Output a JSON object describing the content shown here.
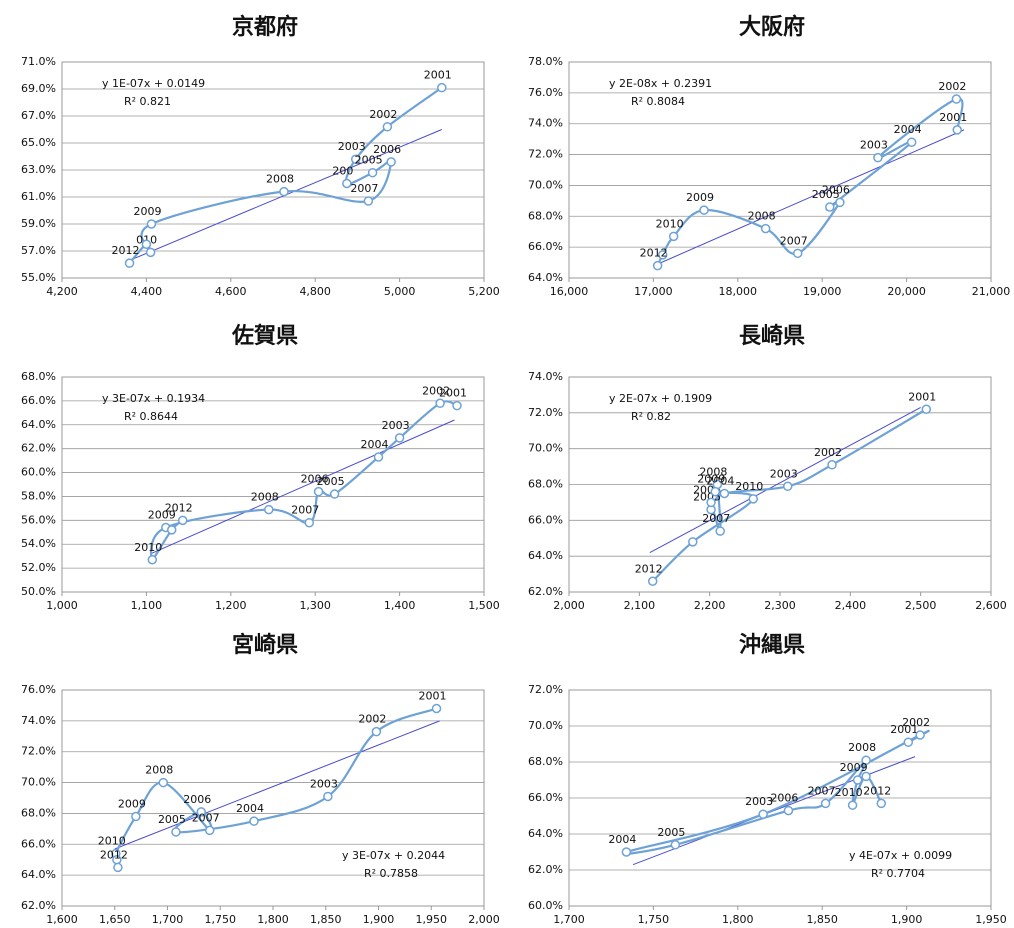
{
  "chart_data": [
    {
      "type": "scatter",
      "title": "京都府",
      "color": "#6ea2d6",
      "equation_position": "top-left",
      "equation": "y   1E-07x + 0.0149",
      "r_squared": "R²   0.821",
      "x": [
        5100,
        4971,
        4896,
        4875,
        4936,
        4980,
        4926,
        4726,
        4412,
        4410,
        4400,
        4360
      ],
      "values": [
        69.1,
        66.2,
        63.8,
        62.0,
        62.8,
        63.6,
        60.7,
        61.4,
        59.0,
        56.9,
        57.5,
        56.1
      ],
      "point_labels": [
        "2001",
        "2002",
        "2003",
        "200",
        "2005",
        "2006",
        "2007",
        "2008",
        "2009",
        "010",
        null,
        "2012"
      ],
      "trendline": {
        "color": "#4a4ad0",
        "x": [
          4360,
          5100
        ],
        "values": [
          56.3,
          66.0
        ]
      },
      "xlim": [
        4200,
        5200
      ],
      "xticks": [
        {
          "value": 4200,
          "label": "4,200"
        },
        {
          "value": 4400,
          "label": "4,400"
        },
        {
          "value": 4600,
          "label": "4,600"
        },
        {
          "value": 4800,
          "label": "4,800"
        },
        {
          "value": 5000,
          "label": "5,000"
        },
        {
          "value": 5200,
          "label": "5,200"
        }
      ],
      "ylim": [
        55,
        71
      ],
      "yticks": [
        {
          "value": 55,
          "label": "55.0%"
        },
        {
          "value": 57,
          "label": "57.0%"
        },
        {
          "value": 59,
          "label": "59.0%"
        },
        {
          "value": 61,
          "label": "61.0%"
        },
        {
          "value": 63,
          "label": "63.0%"
        },
        {
          "value": 65,
          "label": "65.0%"
        },
        {
          "value": 67,
          "label": "67.0%"
        },
        {
          "value": 69,
          "label": "69.0%"
        },
        {
          "value": 71,
          "label": "71.0%"
        }
      ],
      "grid": true
    },
    {
      "type": "scatter",
      "title": "大阪府",
      "color": "#6ea2d6",
      "equation_position": "top-left",
      "equation": "y   2E-08x + 0.2391",
      "r_squared": "R²   0.8084",
      "x": [
        20600,
        20590,
        19660,
        20060,
        19090,
        19210,
        18710,
        18330,
        17600,
        17240,
        17110,
        17050
      ],
      "values": [
        73.6,
        75.6,
        71.8,
        72.8,
        68.6,
        68.9,
        65.6,
        67.2,
        68.4,
        66.7,
        65.5,
        64.8
      ],
      "point_labels": [
        "2001",
        "2002",
        "2003",
        "2004",
        "2005",
        "2006",
        "2007",
        "2008",
        "2009",
        "2010",
        null,
        "2012"
      ],
      "trendline": {
        "color": "#4a4ad0",
        "x": [
          17050,
          20680
        ],
        "values": [
          64.9,
          73.6
        ]
      },
      "xlim": [
        16000,
        21000
      ],
      "xticks": [
        {
          "value": 16000,
          "label": "16,000"
        },
        {
          "value": 17000,
          "label": "17,000"
        },
        {
          "value": 18000,
          "label": "18,000"
        },
        {
          "value": 19000,
          "label": "19,000"
        },
        {
          "value": 20000,
          "label": "20,000"
        },
        {
          "value": 21000,
          "label": "21,000"
        }
      ],
      "ylim": [
        64,
        78
      ],
      "yticks": [
        {
          "value": 64,
          "label": "64.0%"
        },
        {
          "value": 66,
          "label": "66.0%"
        },
        {
          "value": 68,
          "label": "68.0%"
        },
        {
          "value": 70,
          "label": "70.0%"
        },
        {
          "value": 72,
          "label": "72.0%"
        },
        {
          "value": 74,
          "label": "74.0%"
        },
        {
          "value": 76,
          "label": "76.0%"
        },
        {
          "value": 78,
          "label": "78.0%"
        }
      ],
      "grid": true
    },
    {
      "type": "scatter",
      "title": "佐賀県",
      "color": "#6ea2d6",
      "equation_position": "top-left",
      "equation": "y   3E-07x + 0.1934",
      "r_squared": "R²   0.8644",
      "x": [
        1468,
        1448,
        1400,
        1375,
        1323,
        1304,
        1293,
        1245,
        1123,
        1107,
        1130,
        1143
      ],
      "values": [
        65.6,
        65.8,
        62.9,
        61.3,
        58.2,
        58.4,
        55.8,
        56.9,
        55.4,
        52.7,
        55.2,
        56.0
      ],
      "point_labels": [
        "2001",
        "2002",
        "2003",
        "2004",
        "2005",
        "2006",
        "2007",
        "2008",
        "2009",
        "2010",
        null,
        "2012"
      ],
      "trendline": {
        "color": "#4a4ad0",
        "x": [
          1105,
          1465
        ],
        "values": [
          53.2,
          64.4
        ]
      },
      "xlim": [
        1000,
        1500
      ],
      "xticks": [
        {
          "value": 1000,
          "label": "1,000"
        },
        {
          "value": 1100,
          "label": "1,100"
        },
        {
          "value": 1200,
          "label": "1,200"
        },
        {
          "value": 1300,
          "label": "1,300"
        },
        {
          "value": 1400,
          "label": "1,400"
        },
        {
          "value": 1500,
          "label": "1,500"
        }
      ],
      "ylim": [
        50,
        68
      ],
      "yticks": [
        {
          "value": 50,
          "label": "50.0%"
        },
        {
          "value": 52,
          "label": "52.0%"
        },
        {
          "value": 54,
          "label": "54.0%"
        },
        {
          "value": 56,
          "label": "56.0%"
        },
        {
          "value": 58,
          "label": "58.0%"
        },
        {
          "value": 60,
          "label": "60.0%"
        },
        {
          "value": 62,
          "label": "62.0%"
        },
        {
          "value": 64,
          "label": "64.0%"
        },
        {
          "value": 66,
          "label": "66.0%"
        },
        {
          "value": 68,
          "label": "68.0%"
        }
      ],
      "grid": true
    },
    {
      "type": "scatter",
      "title": "長崎県",
      "color": "#6ea2d6",
      "equation_position": "top-left",
      "equation": "y   2E-07x + 0.1909",
      "r_squared": "R²   0.82",
      "x": [
        2508,
        2374,
        2311,
        2221,
        2202,
        2202,
        2215,
        2211,
        2208,
        2262,
        2176,
        2119
      ],
      "values": [
        72.2,
        69.1,
        67.9,
        67.5,
        66.6,
        67.0,
        65.4,
        68.0,
        67.6,
        67.2,
        64.8,
        62.6
      ],
      "point_labels": [
        "2001",
        "2002",
        "2003",
        "2004",
        "2005",
        "2006",
        "2007",
        "2008",
        "2009",
        "2010",
        null,
        "2012"
      ],
      "trendline": {
        "color": "#4a4ad0",
        "x": [
          2115,
          2500
        ],
        "values": [
          64.2,
          72.3
        ]
      },
      "xlim": [
        2000,
        2600
      ],
      "xticks": [
        {
          "value": 2000,
          "label": "2,000"
        },
        {
          "value": 2100,
          "label": "2,100"
        },
        {
          "value": 2200,
          "label": "2,200"
        },
        {
          "value": 2300,
          "label": "2,300"
        },
        {
          "value": 2400,
          "label": "2,400"
        },
        {
          "value": 2500,
          "label": "2,500"
        },
        {
          "value": 2600,
          "label": "2,600"
        }
      ],
      "ylim": [
        62,
        74
      ],
      "yticks": [
        {
          "value": 62,
          "label": "62.0%"
        },
        {
          "value": 64,
          "label": "64.0%"
        },
        {
          "value": 66,
          "label": "66.0%"
        },
        {
          "value": 68,
          "label": "68.0%"
        },
        {
          "value": 70,
          "label": "70.0%"
        },
        {
          "value": 72,
          "label": "72.0%"
        },
        {
          "value": 74,
          "label": "74.0%"
        }
      ],
      "grid": true
    },
    {
      "type": "scatter",
      "title": "宮崎県",
      "color": "#6ea2d6",
      "equation_position": "bottom-right",
      "equation": "y   3E-07x + 0.2044",
      "r_squared": "R²   0.7858",
      "x": [
        1955,
        1898,
        1852,
        1782,
        1708,
        1732,
        1740,
        1696,
        1670,
        1651,
        1652,
        1653
      ],
      "values": [
        74.8,
        73.3,
        69.1,
        67.5,
        66.8,
        68.1,
        66.9,
        70.0,
        67.8,
        65.4,
        65.0,
        64.5
      ],
      "point_labels": [
        "2001",
        "2002",
        "2003",
        "2004",
        "2005",
        "2006",
        "2007",
        "2008",
        "2009",
        "2010",
        null,
        "2012"
      ],
      "trendline": {
        "color": "#4a4ad0",
        "x": [
          1650,
          1958
        ],
        "values": [
          65.7,
          74.0
        ]
      },
      "xlim": [
        1600,
        2000
      ],
      "xticks": [
        {
          "value": 1600,
          "label": "1,600"
        },
        {
          "value": 1650,
          "label": "1,650"
        },
        {
          "value": 1700,
          "label": "1,700"
        },
        {
          "value": 1750,
          "label": "1,750"
        },
        {
          "value": 1800,
          "label": "1,800"
        },
        {
          "value": 1850,
          "label": "1,850"
        },
        {
          "value": 1900,
          "label": "1,900"
        },
        {
          "value": 1950,
          "label": "1,950"
        },
        {
          "value": 2000,
          "label": "2,000"
        }
      ],
      "ylim": [
        62,
        76
      ],
      "yticks": [
        {
          "value": 62,
          "label": "62.0%"
        },
        {
          "value": 64,
          "label": "64.0%"
        },
        {
          "value": 66,
          "label": "66.0%"
        },
        {
          "value": 68,
          "label": "68.0%"
        },
        {
          "value": 70,
          "label": "70.0%"
        },
        {
          "value": 72,
          "label": "72.0%"
        },
        {
          "value": 74,
          "label": "74.0%"
        },
        {
          "value": 76,
          "label": "76.0%"
        }
      ],
      "grid": true
    },
    {
      "type": "scatter",
      "title": "沖縄県",
      "color": "#6ea2d6",
      "equation_position": "bottom-right",
      "equation": "y   4E-07x + 0.0099",
      "r_squared": "R²   0.7704",
      "x": [
        1901,
        1908,
        1815,
        1734,
        1763,
        1830,
        1852,
        1876,
        1871,
        1868,
        1876,
        1885
      ],
      "values": [
        69.1,
        69.5,
        65.1,
        63.0,
        63.4,
        65.3,
        65.7,
        68.1,
        67.0,
        65.6,
        67.2,
        65.7
      ],
      "point_labels": [
        "2001",
        "2002",
        "2003",
        "2004",
        "2005",
        "2006",
        "2007",
        "2008",
        "2009",
        "2010",
        null,
        "2012"
      ],
      "trendline": {
        "color": "#4a4ad0",
        "x": [
          1738,
          1905
        ],
        "values": [
          62.3,
          68.3
        ]
      },
      "xlim": [
        1700,
        1950
      ],
      "xticks": [
        {
          "value": 1700,
          "label": "1,700"
        },
        {
          "value": 1750,
          "label": "1,750"
        },
        {
          "value": 1800,
          "label": "1,800"
        },
        {
          "value": 1850,
          "label": "1,850"
        },
        {
          "value": 1900,
          "label": "1,900"
        },
        {
          "value": 1950,
          "label": "1,950"
        }
      ],
      "ylim": [
        60,
        72
      ],
      "yticks": [
        {
          "value": 60,
          "label": "60.0%"
        },
        {
          "value": 62,
          "label": "62.0%"
        },
        {
          "value": 64,
          "label": "64.0%"
        },
        {
          "value": 66,
          "label": "66.0%"
        },
        {
          "value": 68,
          "label": "68.0%"
        },
        {
          "value": 70,
          "label": "70.0%"
        },
        {
          "value": 72,
          "label": "72.0%"
        }
      ],
      "grid": true
    }
  ]
}
